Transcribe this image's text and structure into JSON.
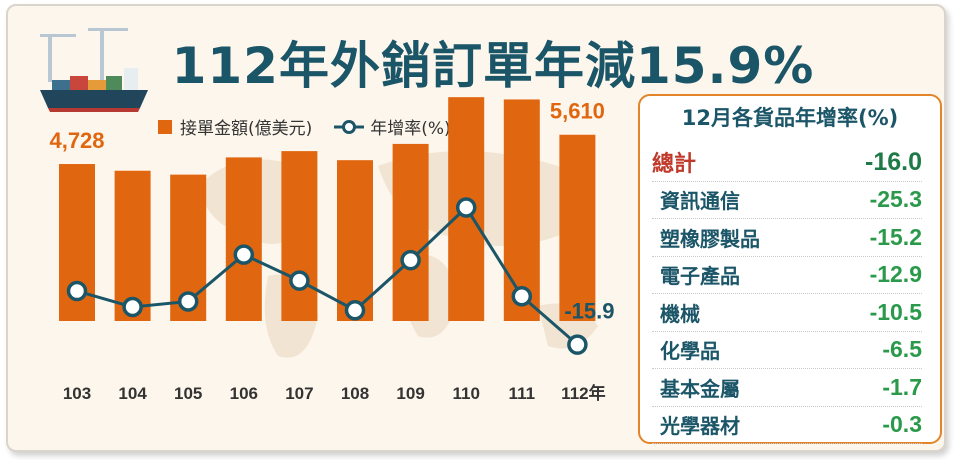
{
  "title": "112年外銷訂單年減15.9%",
  "legend": {
    "bar_label": "接單金額(億美元)",
    "line_label": "年增率(%)"
  },
  "colors": {
    "bar": "#e0660f",
    "line": "#1b5568",
    "title": "#1b5568",
    "value_green": "#2a9a4a",
    "total_label": "#c0392b"
  },
  "chart_data": {
    "type": "bar",
    "categories": [
      "103",
      "104",
      "105",
      "106",
      "107",
      "108",
      "109",
      "110",
      "111",
      "112年"
    ],
    "series": [
      {
        "name": "接單金額(億美元)",
        "type": "bar",
        "values": [
          4728,
          4526,
          4409,
          4928,
          5117,
          4844,
          5334,
          6742,
          6673,
          5610
        ]
      },
      {
        "name": "年增率(%)",
        "type": "line",
        "values": [
          0.6,
          -4.3,
          -2.6,
          11.8,
          3.8,
          -5.3,
          10.1,
          26.3,
          -1.0,
          -15.9
        ]
      }
    ],
    "data_labels": [
      {
        "series": 0,
        "index": 0,
        "text": "4,728"
      },
      {
        "series": 0,
        "index": 9,
        "text": "5,610"
      },
      {
        "series": 1,
        "index": 9,
        "text": "-15.9"
      }
    ],
    "bar_ylim": [
      0,
      7000
    ],
    "line_ylim": [
      -20,
      30
    ],
    "grid": false,
    "legend_position": "top-left"
  },
  "panel": {
    "title": "12月各貨品年增率(%)",
    "rows": [
      {
        "label": "總計",
        "value": "-16.0"
      },
      {
        "label": "資訊通信",
        "value": "-25.3"
      },
      {
        "label": "塑橡膠製品",
        "value": "-15.2"
      },
      {
        "label": "電子產品",
        "value": "-12.9"
      },
      {
        "label": "機械",
        "value": "-10.5"
      },
      {
        "label": "化學品",
        "value": "-6.5"
      },
      {
        "label": "基本金屬",
        "value": "-1.7"
      },
      {
        "label": "光學器材",
        "value": "-0.3"
      }
    ]
  }
}
